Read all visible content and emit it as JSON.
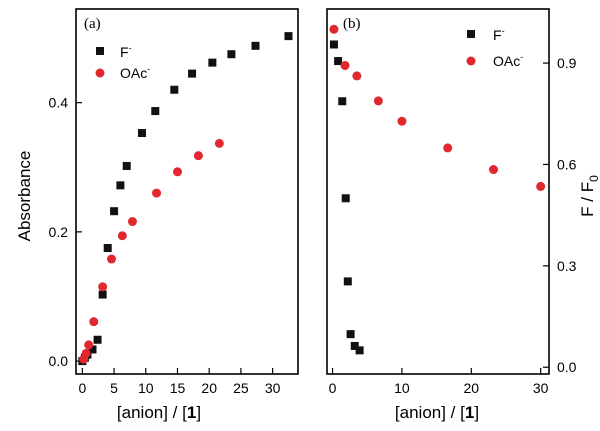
{
  "chart_data": [
    {
      "type": "scatter",
      "panel_label": "(a)",
      "xlabel_prefix": "[anion] / [",
      "xlabel_bold": "1",
      "xlabel_suffix": "]",
      "ylabel": "Absorbance",
      "xlim": [
        -1,
        34
      ],
      "ylim": [
        -0.02,
        0.545
      ],
      "xticks": [
        0,
        5,
        10,
        15,
        20,
        25,
        30
      ],
      "xtick_labels": [
        "0",
        "5",
        "10",
        "15",
        "20",
        "25",
        "30"
      ],
      "yticks": [
        0.0,
        0.2,
        0.4
      ],
      "ytick_labels": [
        "0.0",
        "0.2",
        "0.4"
      ],
      "y_axis_side": "left",
      "legend_position": "top-right",
      "series": [
        {
          "name": "F",
          "name_sup": "-",
          "marker": "square",
          "color": "#111111",
          "x": [
            0,
            0.4,
            0.8,
            1.6,
            2.4,
            3.2,
            4.0,
            5.0,
            6.0,
            7.0,
            9.4,
            11.5,
            14.5,
            17.3,
            20.5,
            23.5,
            27.3,
            32.5
          ],
          "y": [
            0.0,
            0.005,
            0.01,
            0.018,
            0.033,
            0.103,
            0.175,
            0.232,
            0.272,
            0.302,
            0.353,
            0.387,
            0.42,
            0.445,
            0.462,
            0.475,
            0.488,
            0.503
          ]
        },
        {
          "name": "OAc",
          "name_sup": "-",
          "marker": "circle",
          "color": "#e0282e",
          "x": [
            0.2,
            0.6,
            1.0,
            1.8,
            3.2,
            4.6,
            6.3,
            7.9,
            11.7,
            15.0,
            18.3,
            21.6
          ],
          "y": [
            0.003,
            0.012,
            0.025,
            0.061,
            0.115,
            0.158,
            0.194,
            0.216,
            0.26,
            0.293,
            0.318,
            0.337
          ]
        }
      ]
    },
    {
      "type": "scatter",
      "panel_label": "(b)",
      "xlabel_prefix": "[anion] / [",
      "xlabel_bold": "1",
      "xlabel_suffix": "]",
      "ylabel_main": "F / F",
      "ylabel_sub": "0",
      "xlim": [
        -0.8,
        31.2
      ],
      "ylim": [
        -0.02,
        1.06
      ],
      "xticks": [
        0,
        10,
        20,
        30
      ],
      "xtick_labels": [
        "0",
        "10",
        "20",
        "30"
      ],
      "yticks": [
        0.0,
        0.3,
        0.6,
        0.9
      ],
      "ytick_labels": [
        "0.0",
        "0.3",
        "0.6",
        "0.9"
      ],
      "y_axis_side": "right",
      "legend_position": "top-right",
      "series": [
        {
          "name": "F",
          "name_sup": "-",
          "marker": "square",
          "color": "#111111",
          "x": [
            0.2,
            0.8,
            1.4,
            1.9,
            2.2,
            2.6,
            3.2,
            3.9
          ],
          "y": [
            0.955,
            0.906,
            0.787,
            0.5,
            0.254,
            0.098,
            0.063,
            0.05
          ]
        },
        {
          "name": "OAc",
          "name_sup": "-",
          "marker": "circle",
          "color": "#e0282e",
          "x": [
            0.2,
            1.8,
            3.5,
            6.6,
            10.0,
            16.6,
            23.2,
            30.0
          ],
          "y": [
            1.0,
            0.893,
            0.862,
            0.788,
            0.728,
            0.649,
            0.585,
            0.535
          ]
        }
      ]
    }
  ]
}
